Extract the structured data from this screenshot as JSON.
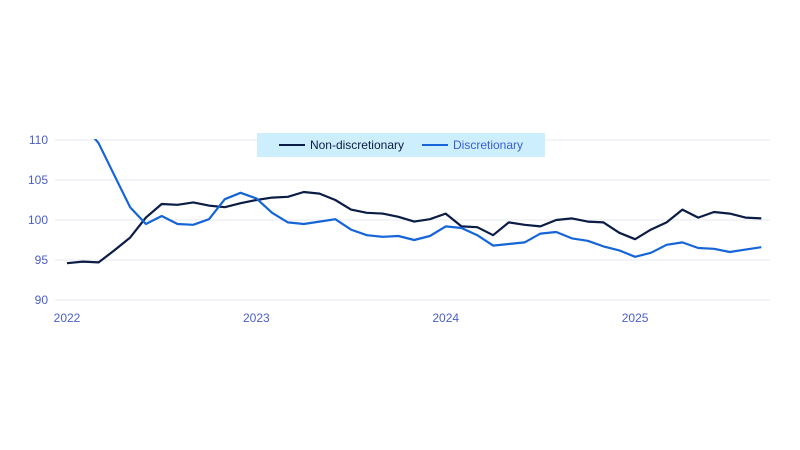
{
  "chart_data": {
    "type": "line",
    "title": "",
    "xlabel": "",
    "ylabel": "",
    "ylim": [
      90,
      110
    ],
    "yticks": [
      "90",
      "95",
      "100",
      "105",
      "110"
    ],
    "xticks": [
      "2022",
      "2023",
      "2024",
      "2025"
    ],
    "x_start": "2022-01",
    "x_frequency": "monthly",
    "grid": "horizontal",
    "legend_position": "top-center",
    "legend_background": "#cdeefc",
    "series": [
      {
        "name": "Non-discretionary",
        "color": "#0b1d45",
        "values": [
          94.6,
          94.8,
          94.7,
          96.2,
          97.8,
          100.3,
          102.0,
          101.9,
          102.2,
          101.8,
          101.6,
          102.1,
          102.5,
          102.8,
          102.9,
          103.5,
          103.3,
          102.5,
          101.3,
          100.9,
          100.8,
          100.4,
          99.8,
          100.1,
          100.8,
          99.2,
          99.1,
          98.1,
          99.7,
          99.4,
          99.2,
          100.0,
          100.2,
          99.8,
          99.7,
          98.4,
          97.6,
          98.8,
          99.7,
          101.3,
          100.3,
          101.0,
          100.8,
          100.3,
          100.2
        ]
      },
      {
        "name": "Discretionary",
        "color": "#1565d8",
        "values": [
          null,
          112.0,
          109.6,
          105.6,
          101.6,
          99.5,
          100.5,
          99.5,
          99.4,
          100.1,
          102.6,
          103.4,
          102.7,
          100.9,
          99.7,
          99.5,
          99.8,
          100.1,
          98.8,
          98.1,
          97.9,
          98.0,
          97.5,
          98.0,
          99.2,
          99.0,
          98.1,
          96.8,
          97.0,
          97.2,
          98.3,
          98.5,
          97.7,
          97.4,
          96.7,
          96.2,
          95.4,
          95.9,
          96.9,
          97.2,
          96.5,
          96.4,
          96.0,
          96.3,
          96.6
        ]
      }
    ]
  }
}
